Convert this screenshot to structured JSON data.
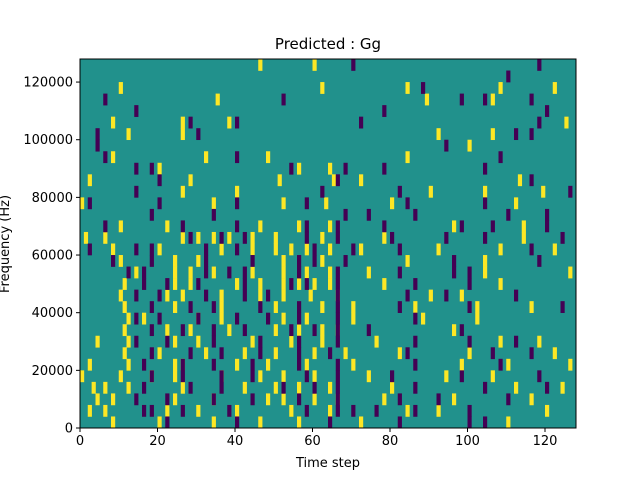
{
  "chart_data": {
    "type": "heatmap",
    "title": "Predicted : Gg",
    "xlabel": "Time step",
    "ylabel": "Frequency (Hz)",
    "xlim": [
      0,
      128
    ],
    "ylim": [
      0,
      128000
    ],
    "xticks": [
      0,
      20,
      40,
      60,
      80,
      100,
      120
    ],
    "yticks": [
      0,
      20000,
      40000,
      60000,
      80000,
      100000,
      120000
    ],
    "rows": 32,
    "colors": {
      "background": "#21918c",
      "high": "#fde725",
      "low": "#440154"
    },
    "high_cells": [
      [
        46,
        31
      ],
      [
        60,
        31
      ],
      [
        10,
        29
      ],
      [
        62,
        29
      ],
      [
        84,
        29
      ],
      [
        108,
        29
      ],
      [
        122,
        29
      ],
      [
        35,
        28
      ],
      [
        89,
        28
      ],
      [
        106,
        28
      ],
      [
        8,
        26
      ],
      [
        26,
        26
      ],
      [
        38,
        26
      ],
      [
        125,
        26
      ],
      [
        12,
        25
      ],
      [
        26,
        25
      ],
      [
        92,
        25
      ],
      [
        106,
        25
      ],
      [
        100,
        24
      ],
      [
        32,
        23
      ],
      [
        48,
        23
      ],
      [
        8,
        23
      ],
      [
        84,
        23
      ],
      [
        20,
        22
      ],
      [
        56,
        22
      ],
      [
        64,
        22
      ],
      [
        2,
        21
      ],
      [
        28,
        21
      ],
      [
        51,
        21
      ],
      [
        65,
        21
      ],
      [
        72,
        21
      ],
      [
        113,
        21
      ],
      [
        26,
        20
      ],
      [
        40,
        20
      ],
      [
        90,
        20
      ],
      [
        104,
        20
      ],
      [
        119,
        20
      ],
      [
        0,
        19
      ],
      [
        34,
        19
      ],
      [
        52,
        19
      ],
      [
        63,
        19
      ],
      [
        80,
        19
      ],
      [
        112,
        19
      ],
      [
        10,
        17
      ],
      [
        22,
        17
      ],
      [
        46,
        17
      ],
      [
        56,
        17
      ],
      [
        64,
        17
      ],
      [
        96,
        17
      ],
      [
        114,
        17
      ],
      [
        1,
        16
      ],
      [
        6,
        16
      ],
      [
        26,
        16
      ],
      [
        30,
        16
      ],
      [
        34,
        16
      ],
      [
        38,
        16
      ],
      [
        44,
        16
      ],
      [
        50,
        16
      ],
      [
        62,
        16
      ],
      [
        78,
        16
      ],
      [
        114,
        16
      ],
      [
        8,
        15
      ],
      [
        20,
        15
      ],
      [
        36,
        15
      ],
      [
        44,
        15
      ],
      [
        50,
        15
      ],
      [
        54,
        15
      ],
      [
        58,
        15
      ],
      [
        64,
        15
      ],
      [
        72,
        15
      ],
      [
        92,
        15
      ],
      [
        108,
        15
      ],
      [
        122,
        15
      ],
      [
        10,
        14
      ],
      [
        24,
        14
      ],
      [
        30,
        14
      ],
      [
        52,
        14
      ],
      [
        62,
        14
      ],
      [
        84,
        14
      ],
      [
        104,
        14
      ],
      [
        14,
        13
      ],
      [
        24,
        13
      ],
      [
        28,
        13
      ],
      [
        34,
        13
      ],
      [
        44,
        13
      ],
      [
        52,
        13
      ],
      [
        58,
        13
      ],
      [
        64,
        13
      ],
      [
        74,
        13
      ],
      [
        104,
        13
      ],
      [
        126,
        13
      ],
      [
        11,
        12
      ],
      [
        24,
        12
      ],
      [
        28,
        12
      ],
      [
        40,
        12
      ],
      [
        46,
        12
      ],
      [
        52,
        12
      ],
      [
        56,
        12
      ],
      [
        60,
        12
      ],
      [
        64,
        12
      ],
      [
        78,
        12
      ],
      [
        108,
        12
      ],
      [
        10,
        11
      ],
      [
        22,
        11
      ],
      [
        26,
        11
      ],
      [
        36,
        11
      ],
      [
        46,
        11
      ],
      [
        52,
        11
      ],
      [
        59,
        11
      ],
      [
        66,
        11
      ],
      [
        90,
        11
      ],
      [
        98,
        11
      ],
      [
        11,
        10
      ],
      [
        24,
        10
      ],
      [
        36,
        10
      ],
      [
        50,
        10
      ],
      [
        62,
        10
      ],
      [
        70,
        10
      ],
      [
        86,
        10
      ],
      [
        102,
        10
      ],
      [
        116,
        10
      ],
      [
        12,
        9
      ],
      [
        16,
        9
      ],
      [
        30,
        9
      ],
      [
        36,
        9
      ],
      [
        52,
        9
      ],
      [
        58,
        9
      ],
      [
        70,
        9
      ],
      [
        88,
        9
      ],
      [
        102,
        9
      ],
      [
        11,
        8
      ],
      [
        22,
        8
      ],
      [
        28,
        8
      ],
      [
        38,
        8
      ],
      [
        50,
        8
      ],
      [
        56,
        8
      ],
      [
        62,
        8
      ],
      [
        66,
        8
      ],
      [
        96,
        8
      ],
      [
        4,
        7
      ],
      [
        12,
        7
      ],
      [
        24,
        7
      ],
      [
        30,
        7
      ],
      [
        44,
        7
      ],
      [
        54,
        7
      ],
      [
        62,
        7
      ],
      [
        76,
        7
      ],
      [
        108,
        7
      ],
      [
        118,
        7
      ],
      [
        11,
        6
      ],
      [
        20,
        6
      ],
      [
        32,
        6
      ],
      [
        42,
        6
      ],
      [
        50,
        6
      ],
      [
        60,
        6
      ],
      [
        68,
        6
      ],
      [
        82,
        6
      ],
      [
        100,
        6
      ],
      [
        122,
        6
      ],
      [
        2,
        5
      ],
      [
        12,
        5
      ],
      [
        24,
        5
      ],
      [
        26,
        5
      ],
      [
        40,
        5
      ],
      [
        48,
        5
      ],
      [
        58,
        5
      ],
      [
        70,
        5
      ],
      [
        98,
        5
      ],
      [
        110,
        5
      ],
      [
        126,
        5
      ],
      [
        0,
        4
      ],
      [
        10,
        4
      ],
      [
        18,
        4
      ],
      [
        24,
        4
      ],
      [
        36,
        4
      ],
      [
        46,
        4
      ],
      [
        52,
        4
      ],
      [
        60,
        4
      ],
      [
        74,
        4
      ],
      [
        94,
        4
      ],
      [
        106,
        4
      ],
      [
        3,
        3
      ],
      [
        6,
        3
      ],
      [
        12,
        3
      ],
      [
        26,
        3
      ],
      [
        42,
        3
      ],
      [
        50,
        3
      ],
      [
        56,
        3
      ],
      [
        64,
        3
      ],
      [
        80,
        3
      ],
      [
        112,
        3
      ],
      [
        124,
        3
      ],
      [
        4,
        2
      ],
      [
        8,
        2
      ],
      [
        24,
        2
      ],
      [
        34,
        2
      ],
      [
        48,
        2
      ],
      [
        52,
        2
      ],
      [
        60,
        2
      ],
      [
        66,
        2
      ],
      [
        78,
        2
      ],
      [
        96,
        2
      ],
      [
        116,
        2
      ],
      [
        2,
        1
      ],
      [
        6,
        1
      ],
      [
        22,
        1
      ],
      [
        30,
        1
      ],
      [
        40,
        1
      ],
      [
        54,
        1
      ],
      [
        64,
        1
      ],
      [
        84,
        1
      ],
      [
        92,
        1
      ],
      [
        120,
        1
      ],
      [
        8,
        0
      ],
      [
        20,
        0
      ],
      [
        34,
        0
      ],
      [
        46,
        0
      ],
      [
        56,
        0
      ],
      [
        72,
        0
      ],
      [
        110,
        0
      ]
    ],
    "low_cells": [
      [
        70,
        31
      ],
      [
        118,
        31
      ],
      [
        110,
        30
      ],
      [
        88,
        29
      ],
      [
        6,
        28
      ],
      [
        52,
        28
      ],
      [
        98,
        28
      ],
      [
        104,
        28
      ],
      [
        116,
        28
      ],
      [
        14,
        27
      ],
      [
        78,
        27
      ],
      [
        120,
        27
      ],
      [
        28,
        26
      ],
      [
        40,
        26
      ],
      [
        72,
        26
      ],
      [
        118,
        26
      ],
      [
        4,
        25
      ],
      [
        30,
        25
      ],
      [
        112,
        25
      ],
      [
        116,
        25
      ],
      [
        4,
        24
      ],
      [
        94,
        24
      ],
      [
        6,
        23
      ],
      [
        40,
        23
      ],
      [
        108,
        23
      ],
      [
        14,
        22
      ],
      [
        18,
        22
      ],
      [
        54,
        22
      ],
      [
        68,
        22
      ],
      [
        78,
        22
      ],
      [
        104,
        22
      ],
      [
        20,
        21
      ],
      [
        66,
        21
      ],
      [
        116,
        21
      ],
      [
        14,
        20
      ],
      [
        62,
        20
      ],
      [
        82,
        20
      ],
      [
        126,
        20
      ],
      [
        2,
        19
      ],
      [
        20,
        19
      ],
      [
        40,
        19
      ],
      [
        58,
        19
      ],
      [
        84,
        19
      ],
      [
        104,
        19
      ],
      [
        18,
        18
      ],
      [
        34,
        18
      ],
      [
        68,
        18
      ],
      [
        74,
        18
      ],
      [
        86,
        18
      ],
      [
        110,
        18
      ],
      [
        120,
        18
      ],
      [
        6,
        17
      ],
      [
        26,
        17
      ],
      [
        40,
        17
      ],
      [
        58,
        17
      ],
      [
        66,
        17
      ],
      [
        78,
        17
      ],
      [
        98,
        17
      ],
      [
        106,
        17
      ],
      [
        120,
        17
      ],
      [
        28,
        16
      ],
      [
        36,
        16
      ],
      [
        42,
        16
      ],
      [
        58,
        16
      ],
      [
        66,
        16
      ],
      [
        80,
        16
      ],
      [
        94,
        16
      ],
      [
        104,
        16
      ],
      [
        124,
        16
      ],
      [
        2,
        15
      ],
      [
        14,
        15
      ],
      [
        18,
        15
      ],
      [
        32,
        15
      ],
      [
        40,
        15
      ],
      [
        60,
        15
      ],
      [
        70,
        15
      ],
      [
        82,
        15
      ],
      [
        116,
        15
      ],
      [
        8,
        14
      ],
      [
        18,
        14
      ],
      [
        32,
        14
      ],
      [
        44,
        14
      ],
      [
        56,
        14
      ],
      [
        60,
        14
      ],
      [
        68,
        14
      ],
      [
        96,
        14
      ],
      [
        118,
        14
      ],
      [
        12,
        13
      ],
      [
        16,
        13
      ],
      [
        32,
        13
      ],
      [
        38,
        13
      ],
      [
        42,
        13
      ],
      [
        56,
        13
      ],
      [
        66,
        13
      ],
      [
        82,
        13
      ],
      [
        96,
        13
      ],
      [
        100,
        13
      ],
      [
        16,
        12
      ],
      [
        22,
        12
      ],
      [
        30,
        12
      ],
      [
        42,
        12
      ],
      [
        54,
        12
      ],
      [
        58,
        12
      ],
      [
        66,
        12
      ],
      [
        86,
        12
      ],
      [
        100,
        12
      ],
      [
        14,
        11
      ],
      [
        20,
        11
      ],
      [
        32,
        11
      ],
      [
        42,
        11
      ],
      [
        48,
        11
      ],
      [
        66,
        11
      ],
      [
        84,
        11
      ],
      [
        94,
        11
      ],
      [
        112,
        11
      ],
      [
        18,
        10
      ],
      [
        28,
        10
      ],
      [
        34,
        10
      ],
      [
        46,
        10
      ],
      [
        56,
        10
      ],
      [
        66,
        10
      ],
      [
        82,
        10
      ],
      [
        100,
        10
      ],
      [
        124,
        10
      ],
      [
        14,
        9
      ],
      [
        20,
        9
      ],
      [
        30,
        9
      ],
      [
        40,
        9
      ],
      [
        48,
        9
      ],
      [
        56,
        9
      ],
      [
        66,
        9
      ],
      [
        86,
        9
      ],
      [
        18,
        8
      ],
      [
        26,
        8
      ],
      [
        34,
        8
      ],
      [
        42,
        8
      ],
      [
        54,
        8
      ],
      [
        60,
        8
      ],
      [
        66,
        8
      ],
      [
        74,
        8
      ],
      [
        98,
        8
      ],
      [
        14,
        7
      ],
      [
        22,
        7
      ],
      [
        34,
        7
      ],
      [
        46,
        7
      ],
      [
        56,
        7
      ],
      [
        66,
        7
      ],
      [
        86,
        7
      ],
      [
        100,
        7
      ],
      [
        112,
        7
      ],
      [
        18,
        6
      ],
      [
        28,
        6
      ],
      [
        36,
        6
      ],
      [
        46,
        6
      ],
      [
        56,
        6
      ],
      [
        64,
        6
      ],
      [
        84,
        6
      ],
      [
        106,
        6
      ],
      [
        116,
        6
      ],
      [
        16,
        5
      ],
      [
        26,
        5
      ],
      [
        34,
        5
      ],
      [
        44,
        5
      ],
      [
        56,
        5
      ],
      [
        66,
        5
      ],
      [
        86,
        5
      ],
      [
        108,
        5
      ],
      [
        18,
        4
      ],
      [
        26,
        4
      ],
      [
        36,
        4
      ],
      [
        44,
        4
      ],
      [
        58,
        4
      ],
      [
        66,
        4
      ],
      [
        80,
        4
      ],
      [
        98,
        4
      ],
      [
        118,
        4
      ],
      [
        16,
        3
      ],
      [
        28,
        3
      ],
      [
        36,
        3
      ],
      [
        52,
        3
      ],
      [
        60,
        3
      ],
      [
        66,
        3
      ],
      [
        86,
        3
      ],
      [
        104,
        3
      ],
      [
        120,
        3
      ],
      [
        14,
        2
      ],
      [
        22,
        2
      ],
      [
        34,
        2
      ],
      [
        44,
        2
      ],
      [
        56,
        2
      ],
      [
        66,
        2
      ],
      [
        82,
        2
      ],
      [
        92,
        2
      ],
      [
        110,
        2
      ],
      [
        16,
        1
      ],
      [
        18,
        1
      ],
      [
        26,
        1
      ],
      [
        38,
        1
      ],
      [
        58,
        1
      ],
      [
        66,
        1
      ],
      [
        70,
        1
      ],
      [
        76,
        1
      ],
      [
        86,
        1
      ],
      [
        100,
        1
      ],
      [
        22,
        0
      ],
      [
        40,
        0
      ],
      [
        64,
        0
      ],
      [
        82,
        0
      ],
      [
        100,
        0
      ],
      [
        104,
        0
      ]
    ]
  }
}
